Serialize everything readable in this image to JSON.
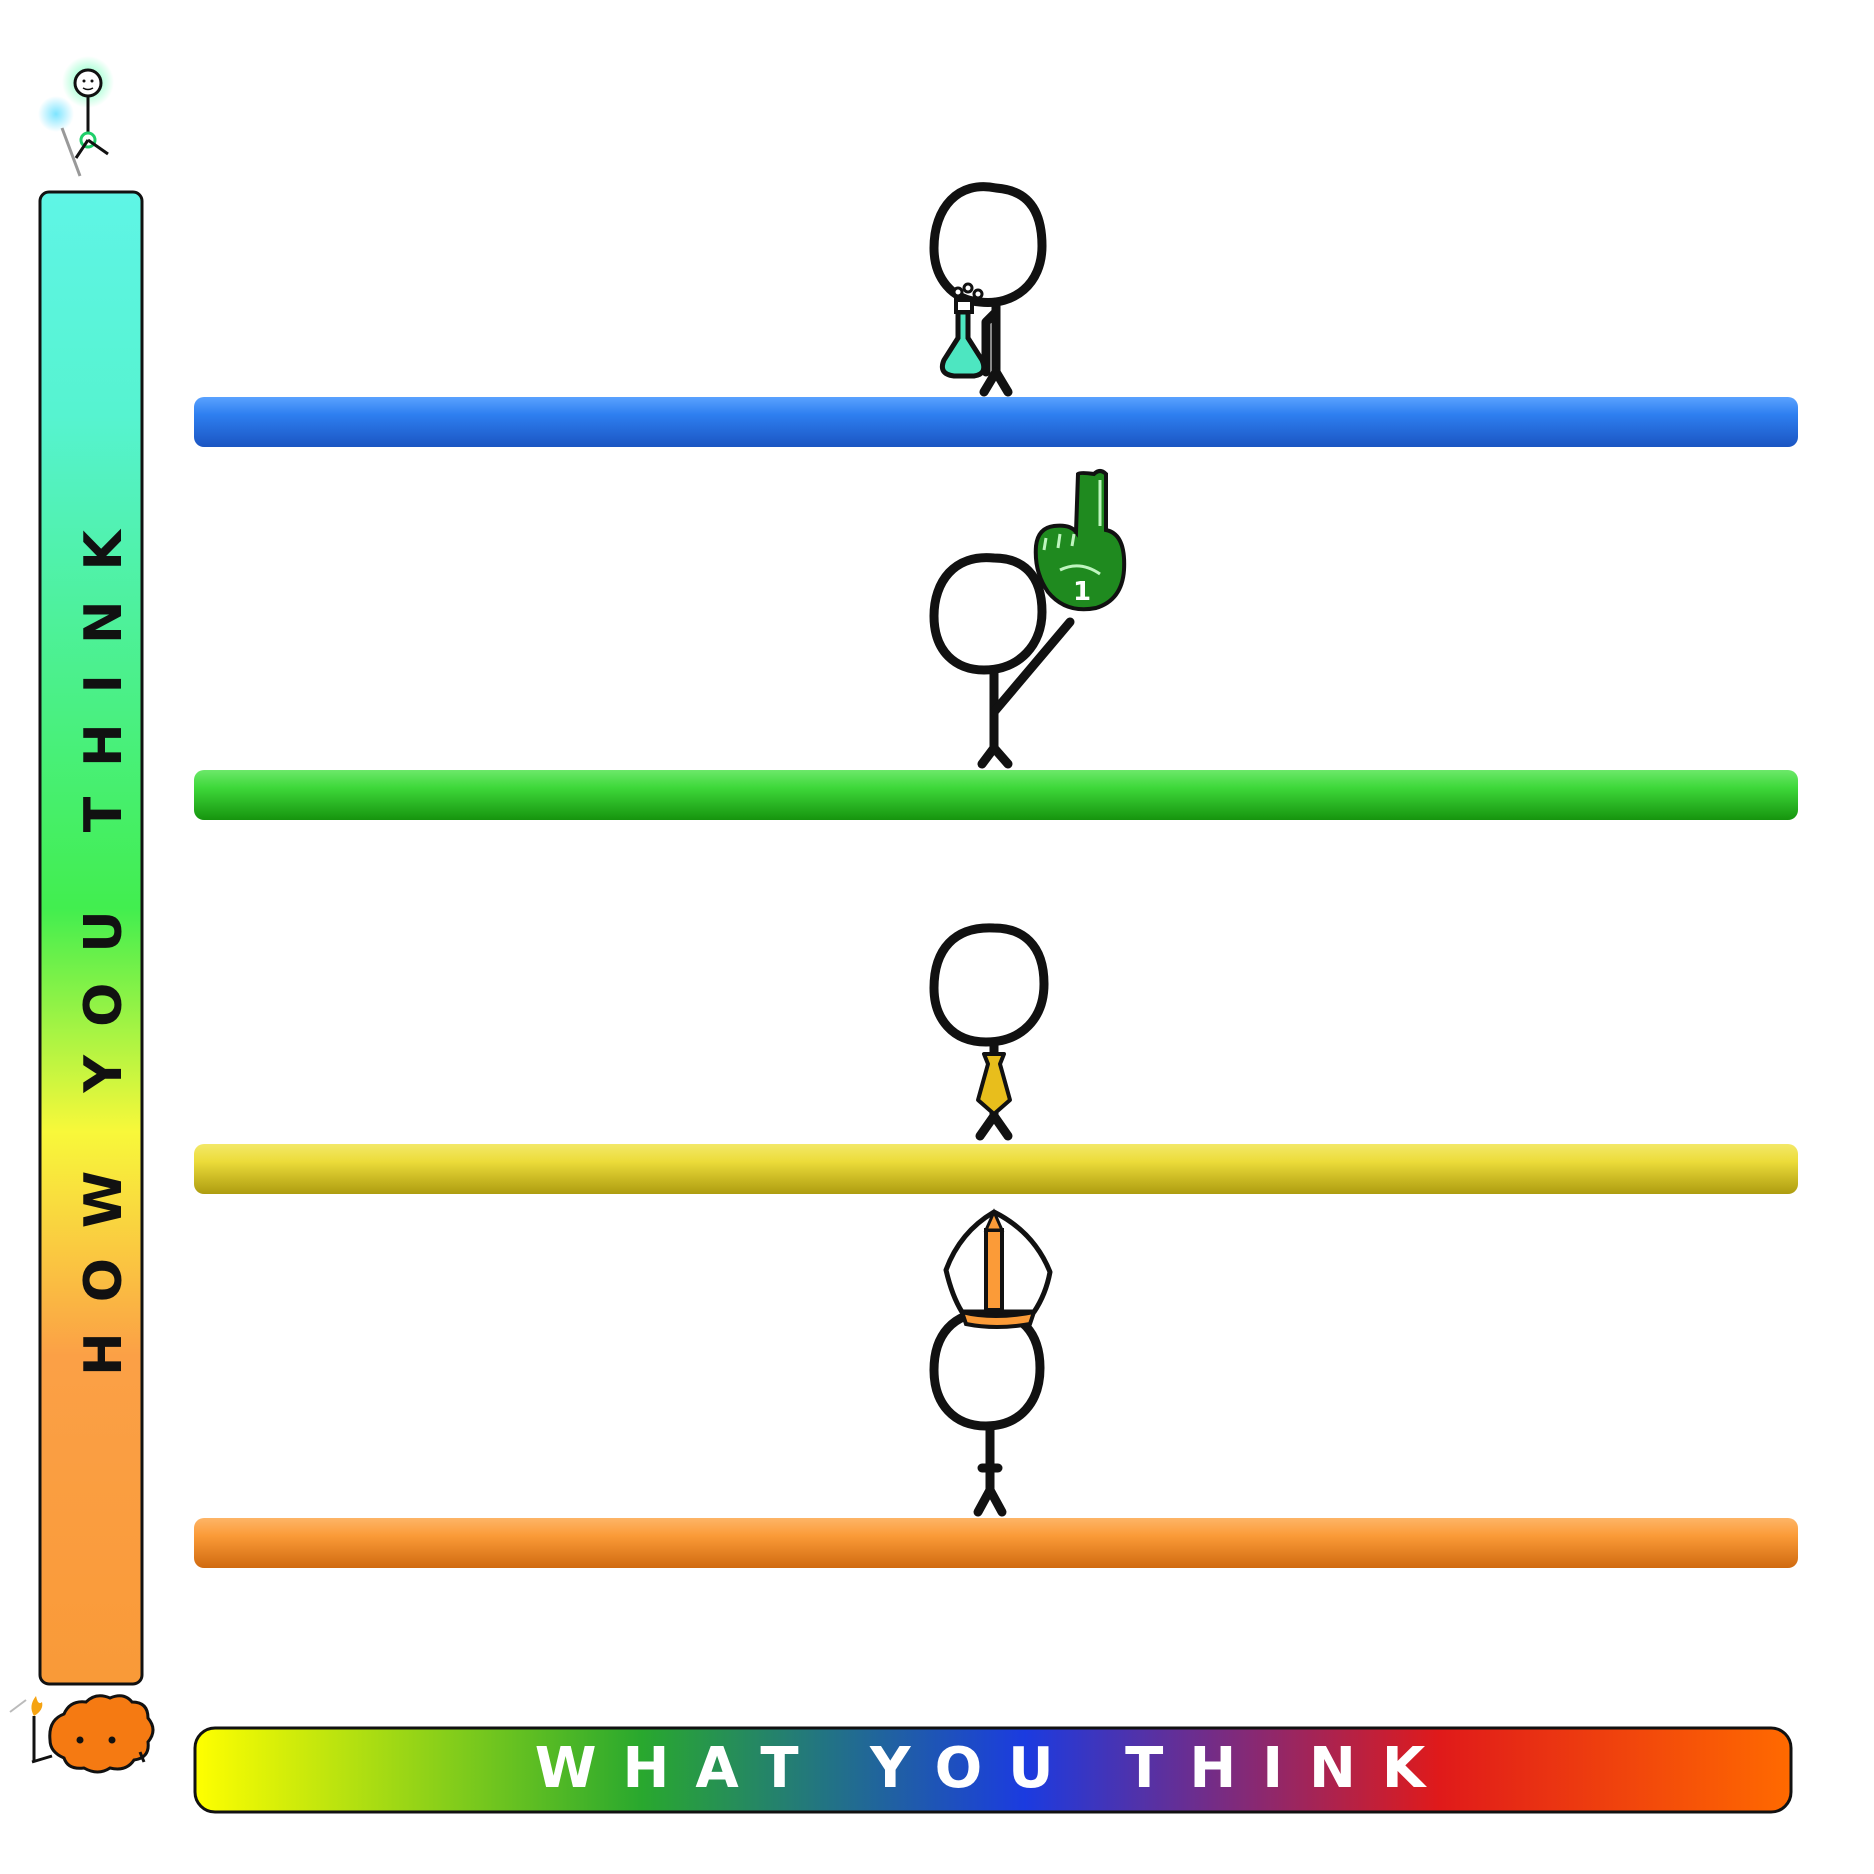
{
  "axes": {
    "vertical_label": "HOW YOU THINK",
    "horizontal_label": "WHAT YOU THINK",
    "vertical_gradient": [
      "#5ff5e6",
      "#42ee4f",
      "#f8f83a",
      "#fba046",
      "#f99a38"
    ],
    "horizontal_gradient": [
      "#ffff00",
      "#29a82e",
      "#1b3be0",
      "#e01a1a",
      "#ff6a00"
    ]
  },
  "levels": [
    {
      "name": "scientist",
      "bar_color": "#2e7ff0",
      "bar_shadow": "#1b55c2",
      "prop": "flask",
      "prop_color": "#4de6c1"
    },
    {
      "name": "sports-fan",
      "bar_color": "#3ed83a",
      "bar_shadow": "#16940e",
      "prop": "foam-finger",
      "prop_color": "#1f8a1f",
      "prop_text": "1"
    },
    {
      "name": "business-person",
      "bar_color": "#ecdc3a",
      "bar_shadow": "#ad9c10",
      "prop": "necktie",
      "prop_color": "#e8be1c"
    },
    {
      "name": "clergy",
      "bar_color": "#fb9b38",
      "bar_shadow": "#d06a10",
      "prop": "mitre",
      "prop_color": "#fb9b38"
    }
  ],
  "icons": {
    "top": "glowing-stick-figure-icon",
    "bottom": "orange-blob-creature-icon"
  }
}
